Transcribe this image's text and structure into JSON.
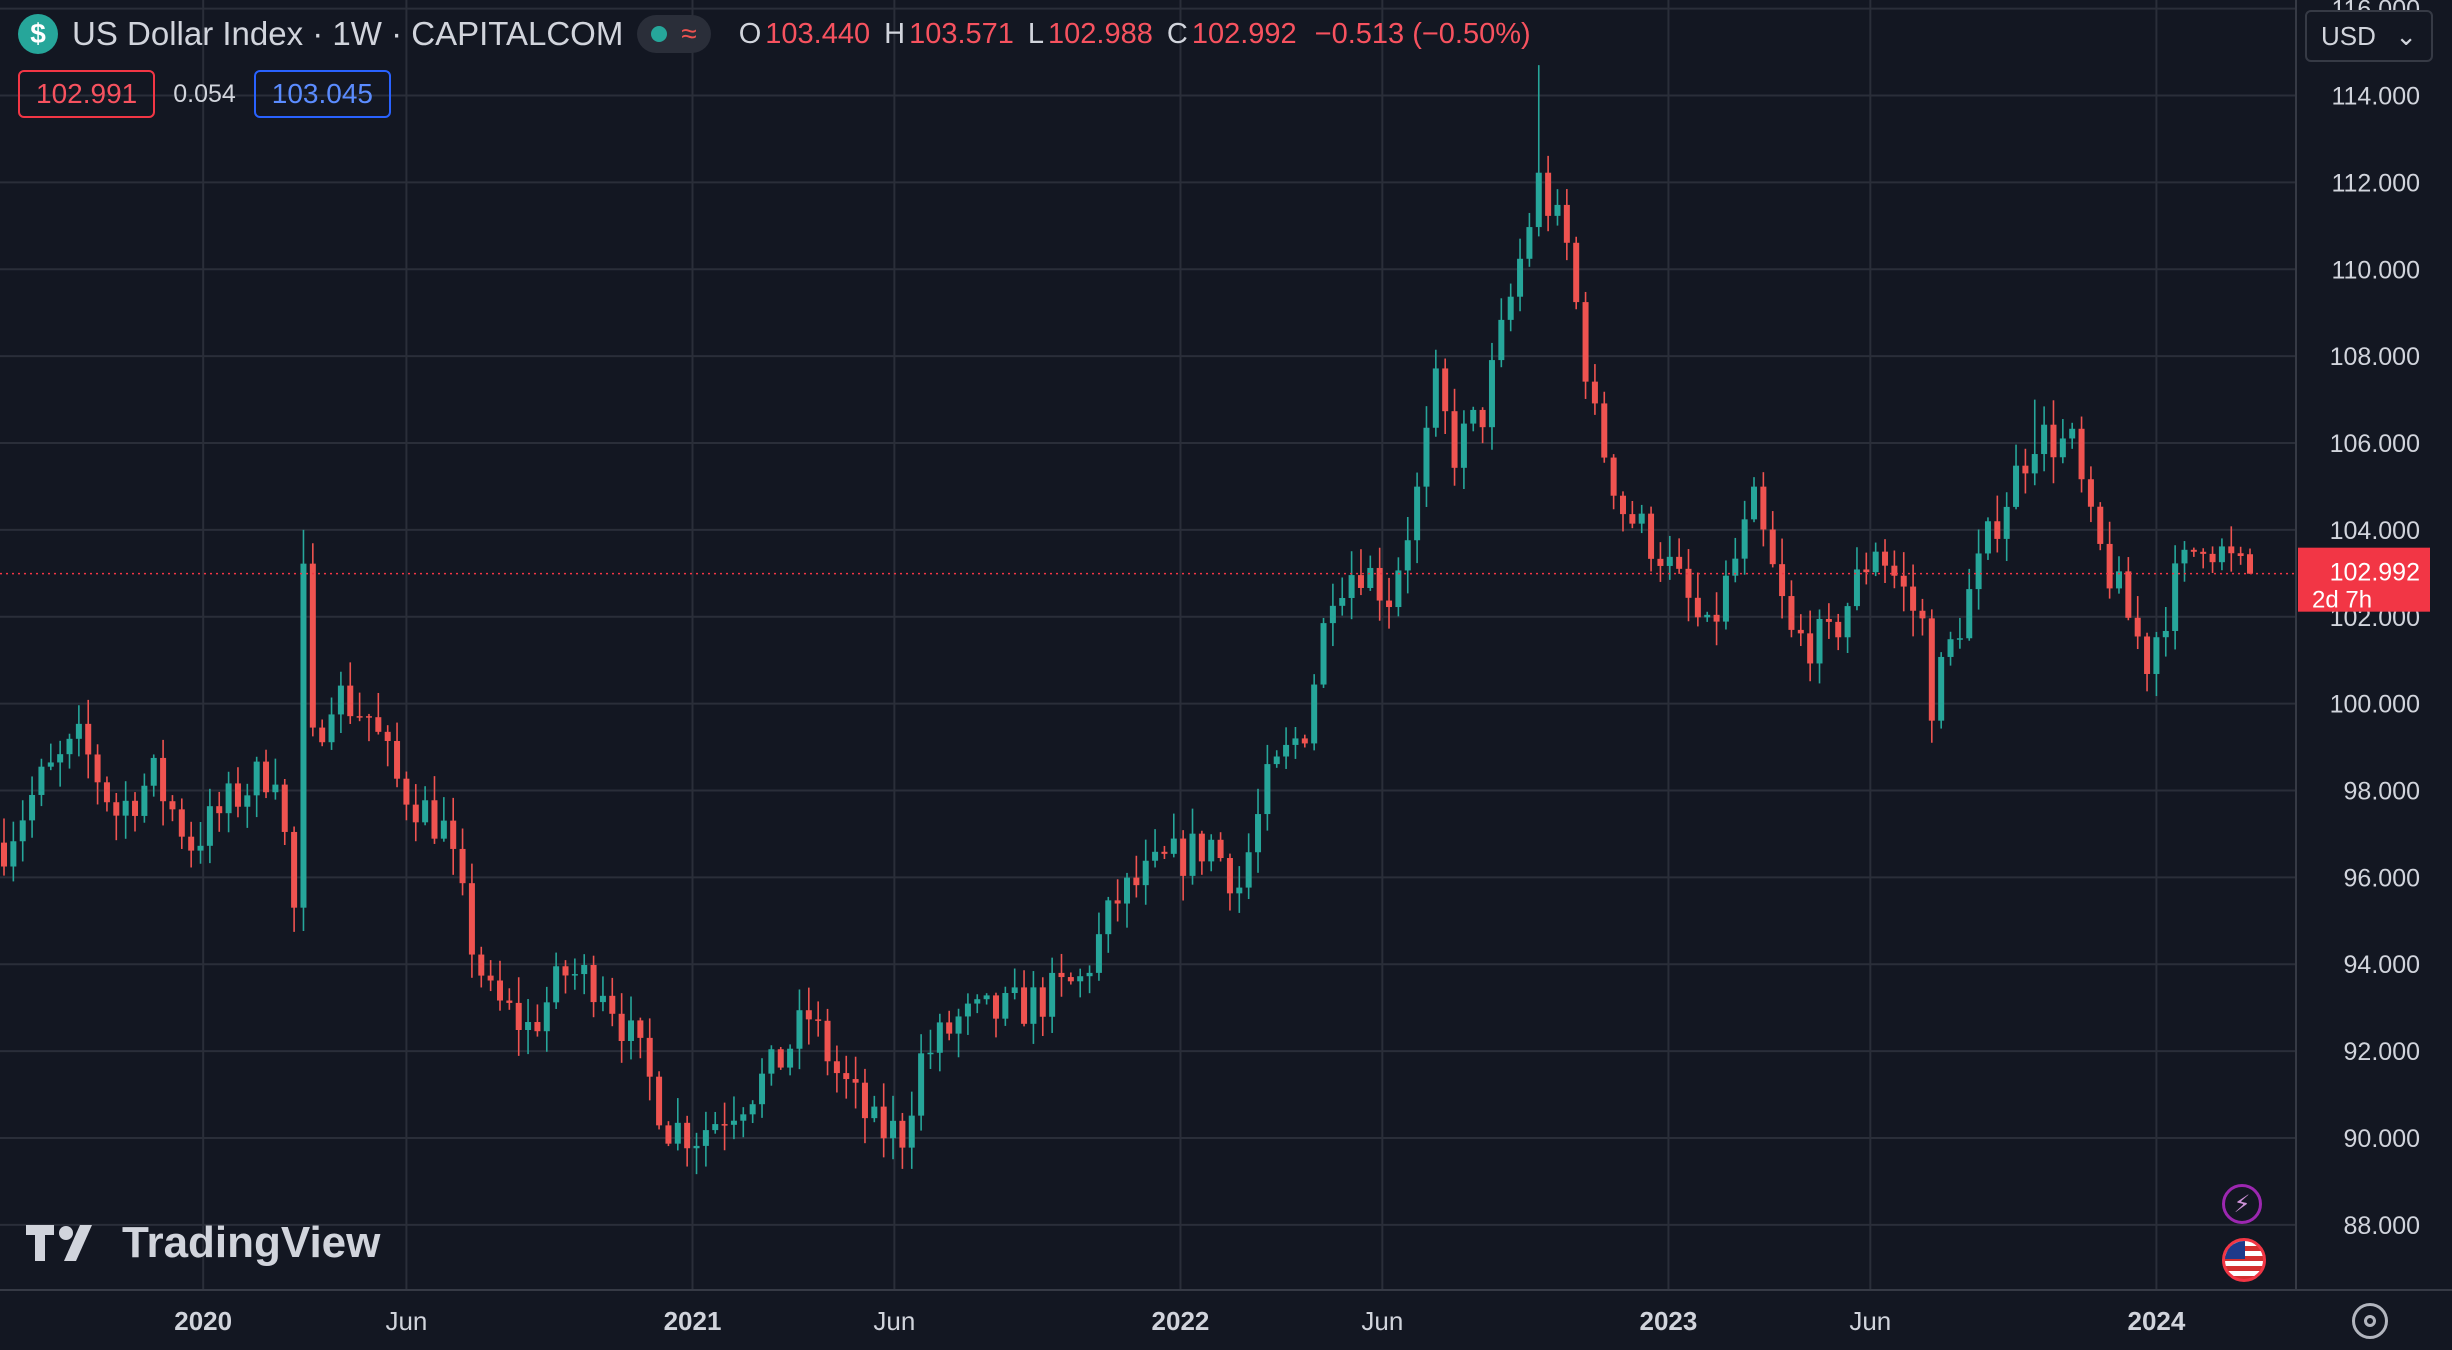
{
  "header": {
    "symbol_icon": "$",
    "title": "US Dollar Index · 1W · CAPITALCOM",
    "status_icon": "market-status-dot-icon",
    "o_label": "O",
    "o_value": "103.440",
    "h_label": "H",
    "h_value": "103.571",
    "l_label": "L",
    "l_value": "102.988",
    "c_label": "C",
    "c_value": "102.992",
    "change": "−0.513 (−0.50%)"
  },
  "quote": {
    "bid": "102.991",
    "spread": "0.054",
    "ask": "103.045"
  },
  "currency": {
    "label": "USD",
    "chevron": "⌄"
  },
  "brand": {
    "name": "TradingView"
  },
  "colors": {
    "up": "#26a69a",
    "down": "#ef5350",
    "background": "#131722",
    "grid": "#2a2e39",
    "last_price": "#f23645"
  },
  "chart_data": {
    "type": "candlestick",
    "timeframe": "1W",
    "ylim": [
      86.5,
      116.2
    ],
    "y_ticks": [
      "88.000",
      "90.000",
      "92.000",
      "94.000",
      "96.000",
      "98.000",
      "100.000",
      "102.000",
      "104.000",
      "106.000",
      "108.000",
      "110.000",
      "112.000",
      "114.000",
      "116.000"
    ],
    "x_ticks": [
      {
        "label": "2020",
        "date": "2020-01-01",
        "bold": true
      },
      {
        "label": "Jun",
        "date": "2020-06-01",
        "bold": false
      },
      {
        "label": "2021",
        "date": "2021-01-01",
        "bold": true
      },
      {
        "label": "Jun",
        "date": "2021-06-01",
        "bold": false
      },
      {
        "label": "2022",
        "date": "2022-01-01",
        "bold": true
      },
      {
        "label": "Jun",
        "date": "2022-06-01",
        "bold": false
      },
      {
        "label": "2023",
        "date": "2023-01-01",
        "bold": true
      },
      {
        "label": "Jun",
        "date": "2023-06-01",
        "bold": false
      },
      {
        "label": "2024",
        "date": "2024-01-01",
        "bold": true
      }
    ],
    "x_range": [
      "2019-08-05",
      "2024-03-11"
    ],
    "close_path": [
      [
        "2019-08-05",
        96.8
      ],
      [
        "2019-09-02",
        98.2
      ],
      [
        "2019-10-01",
        99.1
      ],
      [
        "2019-10-28",
        97.5
      ],
      [
        "2019-11-25",
        98.3
      ],
      [
        "2019-12-23",
        96.8
      ],
      [
        "2020-01-27",
        97.9
      ],
      [
        "2020-02-24",
        98.6
      ],
      [
        "2020-03-09",
        95.2
      ],
      [
        "2020-03-16",
        102.8
      ],
      [
        "2020-03-23",
        99.0
      ],
      [
        "2020-04-06",
        100.3
      ],
      [
        "2020-05-04",
        99.7
      ],
      [
        "2020-05-25",
        98.2
      ],
      [
        "2020-06-29",
        97.1
      ],
      [
        "2020-07-20",
        94.5
      ],
      [
        "2020-08-03",
        93.2
      ],
      [
        "2020-09-01",
        92.5
      ],
      [
        "2020-09-28",
        93.8
      ],
      [
        "2020-10-26",
        93.6
      ],
      [
        "2020-11-23",
        91.8
      ],
      [
        "2020-12-14",
        90.3
      ],
      [
        "2021-01-04",
        90.1
      ],
      [
        "2021-01-25",
        90.6
      ],
      [
        "2021-03-01",
        91.5
      ],
      [
        "2021-03-29",
        92.8
      ],
      [
        "2021-04-19",
        91.5
      ],
      [
        "2021-05-17",
        90.2
      ],
      [
        "2021-06-07",
        90.1
      ],
      [
        "2021-06-21",
        91.8
      ],
      [
        "2021-07-19",
        92.7
      ],
      [
        "2021-08-23",
        92.9
      ],
      [
        "2021-09-20",
        93.2
      ],
      [
        "2021-10-18",
        93.6
      ],
      [
        "2021-11-15",
        95.5
      ],
      [
        "2021-12-20",
        96.3
      ],
      [
        "2022-01-24",
        96.8
      ],
      [
        "2022-02-14",
        95.8
      ],
      [
        "2022-03-07",
        98.1
      ],
      [
        "2022-04-04",
        99.5
      ],
      [
        "2022-04-25",
        102.8
      ],
      [
        "2022-05-16",
        103.2
      ],
      [
        "2022-06-06",
        102.5
      ],
      [
        "2022-06-27",
        104.8
      ],
      [
        "2022-07-11",
        107.2
      ],
      [
        "2022-07-25",
        105.8
      ],
      [
        "2022-08-15",
        106.7
      ],
      [
        "2022-09-05",
        109.3
      ],
      [
        "2022-09-26",
        112.0
      ],
      [
        "2022-10-17",
        110.5
      ],
      [
        "2022-11-07",
        106.5
      ],
      [
        "2022-11-28",
        104.5
      ],
      [
        "2022-12-26",
        103.5
      ],
      [
        "2023-01-30",
        101.5
      ],
      [
        "2023-03-06",
        104.5
      ],
      [
        "2023-04-03",
        101.5
      ],
      [
        "2023-05-01",
        101.4
      ],
      [
        "2023-06-05",
        103.7
      ],
      [
        "2023-07-10",
        101.8
      ],
      [
        "2023-07-17",
        100.1
      ],
      [
        "2023-08-14",
        102.5
      ],
      [
        "2023-09-04",
        104.3
      ],
      [
        "2023-10-02",
        106.2
      ],
      [
        "2023-10-30",
        105.9
      ],
      [
        "2023-11-13",
        104.0
      ],
      [
        "2023-12-04",
        102.5
      ],
      [
        "2023-12-25",
        101.0
      ],
      [
        "2024-01-15",
        102.8
      ],
      [
        "2024-02-05",
        103.9
      ],
      [
        "2024-03-04",
        103.0
      ]
    ],
    "last_candle": {
      "date": "2024-03-11",
      "open": 103.44,
      "high": 103.571,
      "low": 102.988,
      "close": 102.992
    },
    "extremes": [
      {
        "date": "2020-03-16",
        "high": 104.0
      },
      {
        "date": "2021-01-04",
        "low": 89.2
      },
      {
        "date": "2022-09-26",
        "high": 114.7
      },
      {
        "date": "2023-07-17",
        "low": 99.1
      },
      {
        "date": "2023-10-02",
        "high": 107.0
      },
      {
        "date": "2023-12-25",
        "low": 100.3
      }
    ],
    "last_price": {
      "value": "102.992",
      "countdown": "2d 7h"
    }
  }
}
